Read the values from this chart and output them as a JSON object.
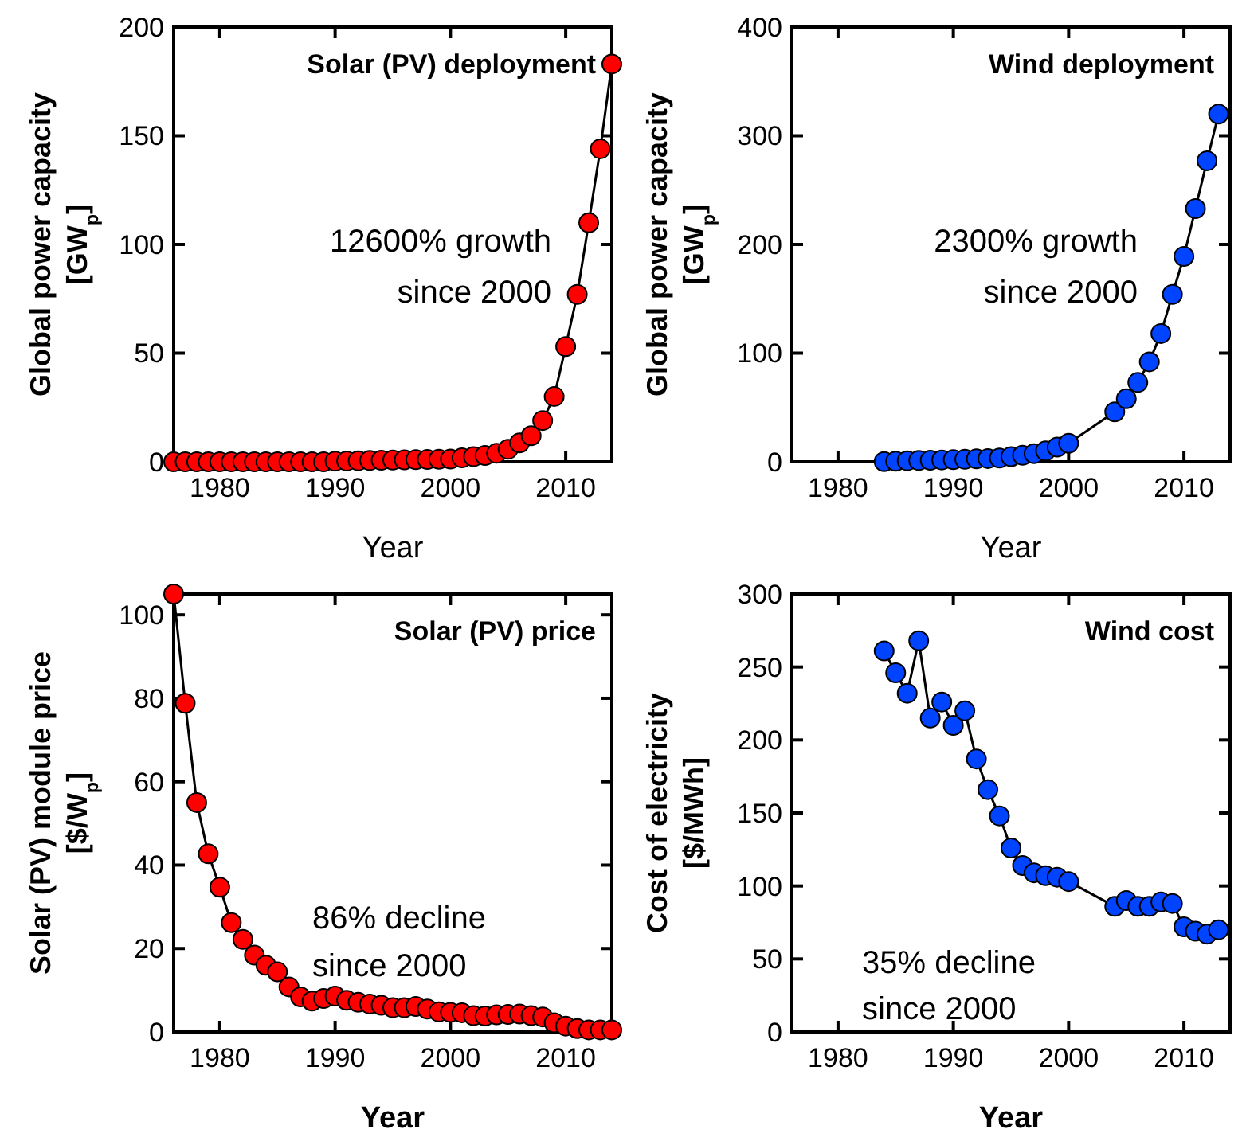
{
  "chart_data": [
    {
      "type": "line",
      "title": "Solar (PV) deployment",
      "xlabel": "Year",
      "ylabel": "Global power capacity\n[GW$_{p}$]",
      "xlim": [
        1976,
        2014
      ],
      "xticks": [
        1980,
        1990,
        2000,
        2010
      ],
      "ylim": [
        0,
        200
      ],
      "yticks": [
        0,
        50,
        100,
        150,
        200
      ],
      "marker": "circle",
      "annotations": [
        "12600% growth\nsince 2000"
      ],
      "x": [
        1976,
        1977,
        1978,
        1979,
        1980,
        1981,
        1982,
        1983,
        1984,
        1985,
        1986,
        1987,
        1988,
        1989,
        1990,
        1991,
        1992,
        1993,
        1994,
        1995,
        1996,
        1997,
        1998,
        1999,
        2000,
        2001,
        2002,
        2003,
        2004,
        2005,
        2006,
        2007,
        2008,
        2009,
        2010,
        2011,
        2012,
        2013,
        2014
      ],
      "series": [
        {
          "color": "#ff0000",
          "values": [
            0,
            0,
            0,
            0,
            0,
            0,
            0,
            0,
            0,
            0,
            0,
            0,
            0,
            0,
            0.3,
            0.4,
            0.5,
            0.6,
            0.7,
            0.8,
            0.9,
            1,
            1.1,
            1.2,
            1.3,
            1.8,
            2.4,
            2.9,
            3.9,
            5.8,
            8.7,
            12,
            19,
            30,
            53,
            77,
            110,
            144,
            183
          ]
        }
      ]
    },
    {
      "type": "line",
      "title": "Wind deployment",
      "xlabel": "Year",
      "ylabel": "Global power capacity\n[GW$_{p}$]",
      "xlim": [
        1976,
        2014
      ],
      "xticks": [
        1980,
        1990,
        2000,
        2010
      ],
      "ylim": [
        0,
        400
      ],
      "yticks": [
        0,
        100,
        200,
        300,
        400
      ],
      "marker": "circle",
      "annotations": [
        "2300% growth\nsince 2000"
      ],
      "x": [
        1984,
        1985,
        1986,
        1987,
        1988,
        1989,
        1990,
        1991,
        1992,
        1993,
        1994,
        1995,
        1996,
        1997,
        1998,
        1999,
        2000,
        2004,
        2005,
        2006,
        2007,
        2008,
        2009,
        2010,
        2011,
        2012,
        2013
      ],
      "series": [
        {
          "color": "#0044ff",
          "values": [
            0.2,
            0.5,
            1,
            1.2,
            1.5,
            1.7,
            2,
            2.3,
            2.7,
            3,
            3.5,
            4.8,
            6,
            7.5,
            10,
            13.6,
            17,
            46,
            58,
            73,
            92,
            118,
            154,
            189,
            233,
            277,
            320
          ]
        }
      ]
    },
    {
      "type": "line",
      "title": "Solar (PV) price",
      "xlabel": "Year",
      "ylabel": "Solar (PV) module price\n[$/W$_{p}$]",
      "xlim": [
        1976,
        2014
      ],
      "xticks": [
        1980,
        1990,
        2000,
        2010
      ],
      "ylim": [
        0,
        105
      ],
      "yticks": [
        0,
        20,
        40,
        60,
        80,
        100
      ],
      "marker": "circle",
      "annotations": [
        "86% decline\nsince 2000"
      ],
      "x": [
        1976,
        1977,
        1978,
        1979,
        1980,
        1981,
        1982,
        1983,
        1984,
        1985,
        1986,
        1987,
        1988,
        1989,
        1990,
        1991,
        1992,
        1993,
        1994,
        1995,
        1996,
        1997,
        1998,
        1999,
        2000,
        2001,
        2002,
        2003,
        2004,
        2005,
        2006,
        2007,
        2008,
        2009,
        2010,
        2011,
        2012,
        2013,
        2014
      ],
      "series": [
        {
          "color": "#ff0000",
          "values": [
            105,
            78.8,
            55,
            42.7,
            34.7,
            26.2,
            22.2,
            18.4,
            16,
            14.4,
            10.8,
            8.4,
            7.4,
            8,
            8.6,
            7.6,
            7.1,
            6.7,
            6.4,
            5.8,
            5.8,
            6.1,
            5.5,
            4.8,
            4.7,
            4.6,
            3.9,
            3.8,
            4.1,
            4.2,
            4.3,
            3.9,
            3.6,
            2.2,
            1.4,
            0.8,
            0.5,
            0.5,
            0.5
          ]
        }
      ]
    },
    {
      "type": "line",
      "title": "Wind cost",
      "xlabel": "Year",
      "ylabel": "Cost of electricity\n[$/MWh]",
      "xlim": [
        1976,
        2014
      ],
      "xticks": [
        1980,
        1990,
        2000,
        2010
      ],
      "ylim": [
        0,
        300
      ],
      "yticks": [
        0,
        50,
        100,
        150,
        200,
        250,
        300
      ],
      "marker": "circle",
      "annotations": [
        "35% decline\nsince 2000"
      ],
      "x": [
        1984,
        1985,
        1986,
        1987,
        1988,
        1989,
        1990,
        1991,
        1992,
        1993,
        1994,
        1995,
        1996,
        1997,
        1998,
        1999,
        2000,
        2004,
        2005,
        2006,
        2007,
        2008,
        2009,
        2010,
        2011,
        2012,
        2013
      ],
      "series": [
        {
          "color": "#0044ff",
          "values": [
            261,
            246,
            232,
            268,
            215,
            226,
            210,
            220,
            187,
            166,
            148,
            126,
            114,
            109,
            107,
            106,
            103,
            86,
            90,
            86,
            86,
            89,
            88,
            72,
            69,
            67,
            70
          ]
        }
      ]
    }
  ]
}
